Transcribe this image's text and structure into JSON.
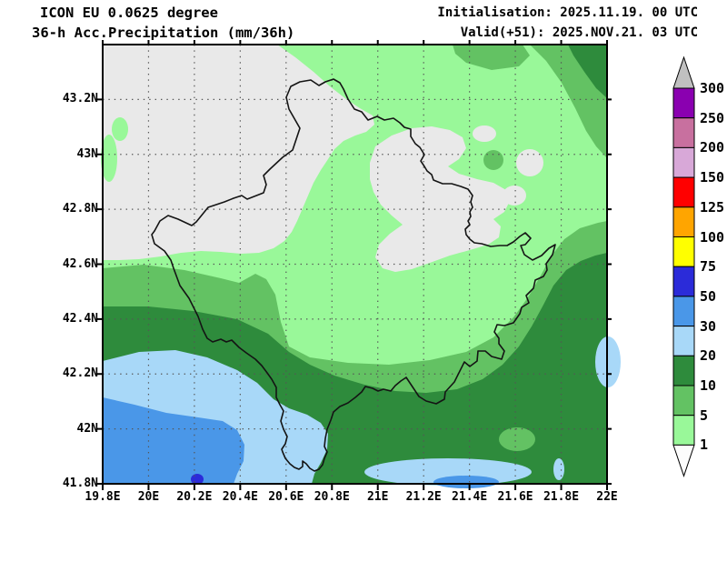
{
  "header": {
    "model_line": "ICON EU 0.0625 degree",
    "product_line": "36-h Acc.Precipitation (mm/36h)",
    "init_line": "Initialisation: 2025.11.19. 00 UTC",
    "valid_line": "Valid(+51): 2025.NOV.21. 03 UTC"
  },
  "map_axes": {
    "lat_labels": [
      "43.2N",
      "43N",
      "42.8N",
      "42.6N",
      "42.4N",
      "42.2N",
      "42N",
      "41.8N"
    ],
    "lon_labels": [
      "19.8E",
      "20E",
      "20.2E",
      "20.4E",
      "20.6E",
      "20.8E",
      "21E",
      "21.2E",
      "21.4E",
      "21.6E",
      "21.8E",
      "22E"
    ]
  },
  "colorbar": {
    "tick_labels": [
      "300",
      "250",
      "200",
      "150",
      "125",
      "100",
      "75",
      "50",
      "30",
      "20",
      "10",
      "5",
      "1"
    ],
    "segment_keys_top_to_bottom": [
      "pu250",
      "pk200",
      "lv150",
      "r125",
      "o100",
      "y75",
      "b50",
      "b30",
      "b20",
      "g10",
      "g5",
      "g1"
    ]
  },
  "palette": {
    "lt1_gray": "#E9E9E9",
    "g1": "#99F899",
    "g5": "#63C263",
    "g10": "#2E8B3C",
    "b20": "#A8D8F8",
    "b30": "#4A97E8",
    "b50": "#2B2BD9",
    "y75": "#FFFF00",
    "o100": "#FFA500",
    "r125": "#FF0000",
    "lv150": "#D8A8D8",
    "pk200": "#C8709F",
    "pu250": "#8A00B0",
    "over300": "#C0C0C0",
    "under1_tri": "#FCFCFC",
    "border_line": "#141414",
    "grid_dots": "#555555",
    "frame": "#000000"
  }
}
